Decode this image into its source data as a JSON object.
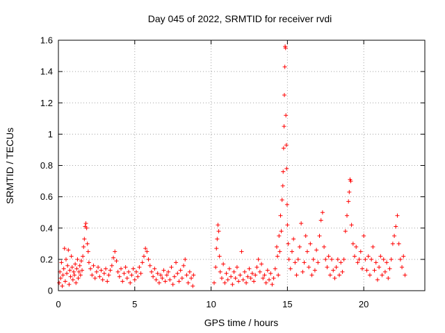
{
  "chart_data": {
    "type": "scatter",
    "title": "Day 045 of 2022, SRMTID for receiver rvdi",
    "xlabel": "GPS time / hours",
    "ylabel": "SRMTID / TECUs",
    "xlim": [
      0,
      24
    ],
    "ylim": [
      0,
      1.6
    ],
    "x_ticks": [
      0,
      5,
      10,
      15,
      20
    ],
    "x_tick_labels": [
      "0",
      "5",
      "10",
      "15",
      "20"
    ],
    "y_ticks": [
      0,
      0.2,
      0.4,
      0.6,
      0.8,
      1.0,
      1.2,
      1.4,
      1.6
    ],
    "y_tick_labels": [
      "0",
      "0.2",
      "0.4",
      "0.6",
      "0.8",
      "1",
      "1.2",
      "1.4",
      "1.6"
    ],
    "grid": true,
    "marker": "+",
    "color": "#ff0000",
    "series": [
      {
        "name": "SRMTID",
        "points": [
          [
            0.05,
            0.05
          ],
          [
            0.1,
            0.12
          ],
          [
            0.15,
            0.08
          ],
          [
            0.2,
            0.18
          ],
          [
            0.25,
            0.03
          ],
          [
            0.3,
            0.1
          ],
          [
            0.35,
            0.14
          ],
          [
            0.4,
            0.27
          ],
          [
            0.45,
            0.06
          ],
          [
            0.5,
            0.2
          ],
          [
            0.55,
            0.11
          ],
          [
            0.6,
            0.16
          ],
          [
            0.65,
            0.26
          ],
          [
            0.7,
            0.04
          ],
          [
            0.75,
            0.13
          ],
          [
            0.8,
            0.09
          ],
          [
            0.85,
            0.22
          ],
          [
            0.9,
            0.15
          ],
          [
            0.95,
            0.07
          ],
          [
            1.0,
            0.12
          ],
          [
            1.05,
            0.1
          ],
          [
            1.1,
            0.17
          ],
          [
            1.15,
            0.05
          ],
          [
            1.2,
            0.14
          ],
          [
            1.25,
            0.2
          ],
          [
            1.3,
            0.08
          ],
          [
            1.35,
            0.12
          ],
          [
            1.4,
            0.16
          ],
          [
            1.45,
            0.1
          ],
          [
            1.5,
            0.19
          ],
          [
            1.55,
            0.13
          ],
          [
            1.6,
            0.22
          ],
          [
            1.65,
            0.28
          ],
          [
            1.7,
            0.33
          ],
          [
            1.75,
            0.41
          ],
          [
            1.8,
            0.43
          ],
          [
            1.85,
            0.4
          ],
          [
            1.9,
            0.3
          ],
          [
            1.95,
            0.25
          ],
          [
            2.0,
            0.18
          ],
          [
            2.1,
            0.14
          ],
          [
            2.2,
            0.1
          ],
          [
            2.3,
            0.16
          ],
          [
            2.4,
            0.08
          ],
          [
            2.5,
            0.12
          ],
          [
            2.6,
            0.15
          ],
          [
            2.7,
            0.09
          ],
          [
            2.8,
            0.13
          ],
          [
            2.9,
            0.07
          ],
          [
            3.0,
            0.11
          ],
          [
            3.1,
            0.14
          ],
          [
            3.2,
            0.06
          ],
          [
            3.3,
            0.1
          ],
          [
            3.4,
            0.13
          ],
          [
            3.5,
            0.16
          ],
          [
            3.6,
            0.21
          ],
          [
            3.7,
            0.25
          ],
          [
            3.8,
            0.19
          ],
          [
            3.9,
            0.12
          ],
          [
            4.0,
            0.09
          ],
          [
            4.1,
            0.14
          ],
          [
            4.2,
            0.06
          ],
          [
            4.3,
            0.11
          ],
          [
            4.4,
            0.15
          ],
          [
            4.5,
            0.08
          ],
          [
            4.6,
            0.12
          ],
          [
            4.7,
            0.05
          ],
          [
            4.8,
            0.1
          ],
          [
            4.9,
            0.14
          ],
          [
            5.0,
            0.07
          ],
          [
            5.1,
            0.12
          ],
          [
            5.2,
            0.09
          ],
          [
            5.3,
            0.15
          ],
          [
            5.4,
            0.11
          ],
          [
            5.5,
            0.18
          ],
          [
            5.6,
            0.22
          ],
          [
            5.7,
            0.27
          ],
          [
            5.8,
            0.25
          ],
          [
            5.9,
            0.2
          ],
          [
            6.0,
            0.16
          ],
          [
            6.1,
            0.12
          ],
          [
            6.2,
            0.09
          ],
          [
            6.3,
            0.14
          ],
          [
            6.4,
            0.07
          ],
          [
            6.5,
            0.11
          ],
          [
            6.6,
            0.05
          ],
          [
            6.7,
            0.1
          ],
          [
            6.8,
            0.08
          ],
          [
            6.9,
            0.13
          ],
          [
            7.0,
            0.06
          ],
          [
            7.1,
            0.1
          ],
          [
            7.2,
            0.12
          ],
          [
            7.3,
            0.07
          ],
          [
            7.4,
            0.15
          ],
          [
            7.5,
            0.04
          ],
          [
            7.6,
            0.09
          ],
          [
            7.7,
            0.18
          ],
          [
            7.8,
            0.11
          ],
          [
            7.9,
            0.06
          ],
          [
            8.0,
            0.13
          ],
          [
            8.1,
            0.08
          ],
          [
            8.2,
            0.16
          ],
          [
            8.3,
            0.2
          ],
          [
            8.4,
            0.1
          ],
          [
            8.5,
            0.05
          ],
          [
            8.6,
            0.12
          ],
          [
            8.7,
            0.08
          ],
          [
            8.8,
            0.03
          ],
          [
            8.85,
            0.1
          ],
          [
            10.2,
            0.05
          ],
          [
            10.3,
            0.15
          ],
          [
            10.35,
            0.27
          ],
          [
            10.4,
            0.33
          ],
          [
            10.45,
            0.42
          ],
          [
            10.5,
            0.38
          ],
          [
            10.55,
            0.22
          ],
          [
            10.6,
            0.12
          ],
          [
            10.7,
            0.08
          ],
          [
            10.8,
            0.17
          ],
          [
            10.9,
            0.05
          ],
          [
            11.0,
            0.11
          ],
          [
            11.1,
            0.07
          ],
          [
            11.2,
            0.14
          ],
          [
            11.3,
            0.09
          ],
          [
            11.4,
            0.04
          ],
          [
            11.5,
            0.12
          ],
          [
            11.6,
            0.08
          ],
          [
            11.7,
            0.15
          ],
          [
            11.8,
            0.06
          ],
          [
            11.9,
            0.1
          ],
          [
            12.0,
            0.25
          ],
          [
            12.1,
            0.07
          ],
          [
            12.2,
            0.12
          ],
          [
            12.3,
            0.05
          ],
          [
            12.4,
            0.09
          ],
          [
            12.5,
            0.14
          ],
          [
            12.6,
            0.08
          ],
          [
            12.7,
            0.11
          ],
          [
            12.8,
            0.06
          ],
          [
            12.9,
            0.1
          ],
          [
            13.0,
            0.15
          ],
          [
            13.1,
            0.2
          ],
          [
            13.2,
            0.12
          ],
          [
            13.3,
            0.17
          ],
          [
            13.4,
            0.08
          ],
          [
            13.5,
            0.1
          ],
          [
            13.6,
            0.05
          ],
          [
            13.7,
            0.13
          ],
          [
            13.8,
            0.07
          ],
          [
            13.9,
            0.11
          ],
          [
            14.0,
            0.04
          ],
          [
            14.1,
            0.08
          ],
          [
            14.2,
            0.14
          ],
          [
            14.3,
            0.28
          ],
          [
            14.35,
            0.22
          ],
          [
            14.4,
            0.1
          ],
          [
            14.45,
            0.35
          ],
          [
            14.5,
            0.25
          ],
          [
            14.55,
            0.48
          ],
          [
            14.6,
            0.38
          ],
          [
            14.65,
            0.58
          ],
          [
            14.7,
            0.67
          ],
          [
            14.72,
            0.76
          ],
          [
            14.75,
            0.91
          ],
          [
            14.78,
            1.05
          ],
          [
            14.8,
            1.25
          ],
          [
            14.83,
            1.43
          ],
          [
            14.85,
            1.56
          ],
          [
            14.88,
            1.55
          ],
          [
            14.9,
            1.12
          ],
          [
            14.93,
            0.93
          ],
          [
            14.95,
            0.78
          ],
          [
            14.98,
            0.55
          ],
          [
            15.0,
            0.42
          ],
          [
            15.05,
            0.3
          ],
          [
            15.1,
            0.2
          ],
          [
            15.2,
            0.14
          ],
          [
            15.3,
            0.25
          ],
          [
            15.4,
            0.33
          ],
          [
            15.5,
            0.18
          ],
          [
            15.6,
            0.1
          ],
          [
            15.7,
            0.2
          ],
          [
            15.8,
            0.28
          ],
          [
            15.9,
            0.43
          ],
          [
            16.0,
            0.12
          ],
          [
            16.1,
            0.18
          ],
          [
            16.2,
            0.35
          ],
          [
            16.3,
            0.25
          ],
          [
            16.4,
            0.15
          ],
          [
            16.5,
            0.3
          ],
          [
            16.6,
            0.1
          ],
          [
            16.7,
            0.2
          ],
          [
            16.8,
            0.13
          ],
          [
            16.9,
            0.26
          ],
          [
            17.0,
            0.18
          ],
          [
            17.1,
            0.35
          ],
          [
            17.2,
            0.45
          ],
          [
            17.3,
            0.5
          ],
          [
            17.4,
            0.28
          ],
          [
            17.5,
            0.2
          ],
          [
            17.6,
            0.15
          ],
          [
            17.7,
            0.22
          ],
          [
            17.8,
            0.1
          ],
          [
            17.9,
            0.2
          ],
          [
            18.0,
            0.13
          ],
          [
            18.1,
            0.08
          ],
          [
            18.2,
            0.15
          ],
          [
            18.3,
            0.2
          ],
          [
            18.4,
            0.1
          ],
          [
            18.5,
            0.18
          ],
          [
            18.6,
            0.12
          ],
          [
            18.7,
            0.2
          ],
          [
            18.8,
            0.38
          ],
          [
            18.9,
            0.48
          ],
          [
            19.0,
            0.57
          ],
          [
            19.05,
            0.63
          ],
          [
            19.1,
            0.71
          ],
          [
            19.15,
            0.7
          ],
          [
            19.2,
            0.42
          ],
          [
            19.3,
            0.3
          ],
          [
            19.4,
            0.22
          ],
          [
            19.5,
            0.28
          ],
          [
            19.6,
            0.18
          ],
          [
            19.7,
            0.2
          ],
          [
            19.8,
            0.25
          ],
          [
            19.9,
            0.14
          ],
          [
            20.0,
            0.35
          ],
          [
            20.1,
            0.2
          ],
          [
            20.2,
            0.13
          ],
          [
            20.3,
            0.22
          ],
          [
            20.4,
            0.1
          ],
          [
            20.5,
            0.2
          ],
          [
            20.6,
            0.28
          ],
          [
            20.7,
            0.13
          ],
          [
            20.8,
            0.18
          ],
          [
            20.9,
            0.07
          ],
          [
            21.0,
            0.15
          ],
          [
            21.1,
            0.22
          ],
          [
            21.2,
            0.1
          ],
          [
            21.3,
            0.2
          ],
          [
            21.4,
            0.12
          ],
          [
            21.5,
            0.18
          ],
          [
            21.6,
            0.08
          ],
          [
            21.7,
            0.14
          ],
          [
            21.8,
            0.2
          ],
          [
            21.9,
            0.3
          ],
          [
            22.0,
            0.35
          ],
          [
            22.1,
            0.41
          ],
          [
            22.2,
            0.48
          ],
          [
            22.3,
            0.3
          ],
          [
            22.4,
            0.2
          ],
          [
            22.5,
            0.15
          ],
          [
            22.6,
            0.22
          ],
          [
            22.7,
            0.1
          ]
        ]
      }
    ]
  }
}
